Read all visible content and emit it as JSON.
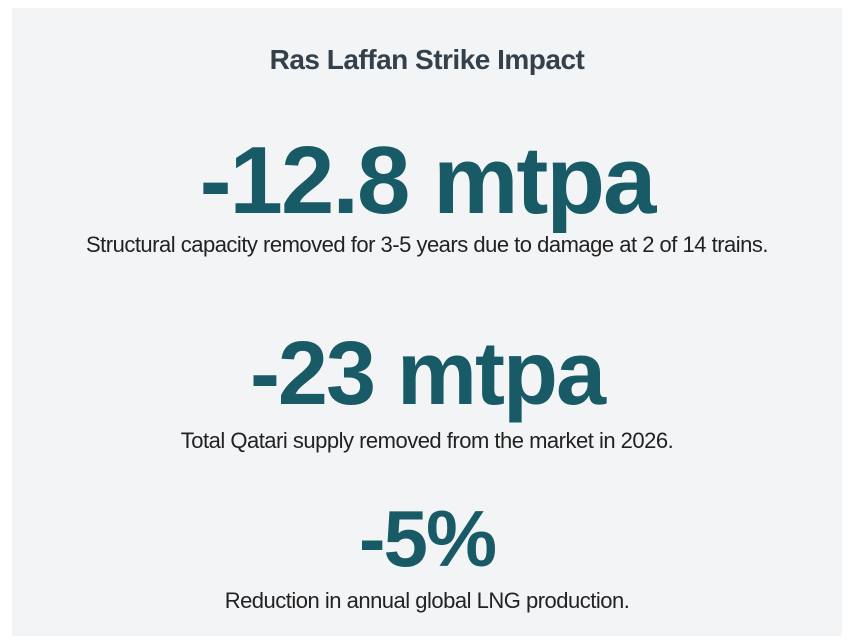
{
  "header": {
    "title": "Ras Laffan Strike Impact"
  },
  "stats": [
    {
      "value": "-12.8 mtpa",
      "description": "Structural capacity removed for 3-5 years due to damage at 2 of 14 trains."
    },
    {
      "value": "-23 mtpa",
      "description": "Total Qatari supply removed from the market in 2026."
    },
    {
      "value": "-5%",
      "description": "Reduction in annual global LNG production."
    }
  ]
}
